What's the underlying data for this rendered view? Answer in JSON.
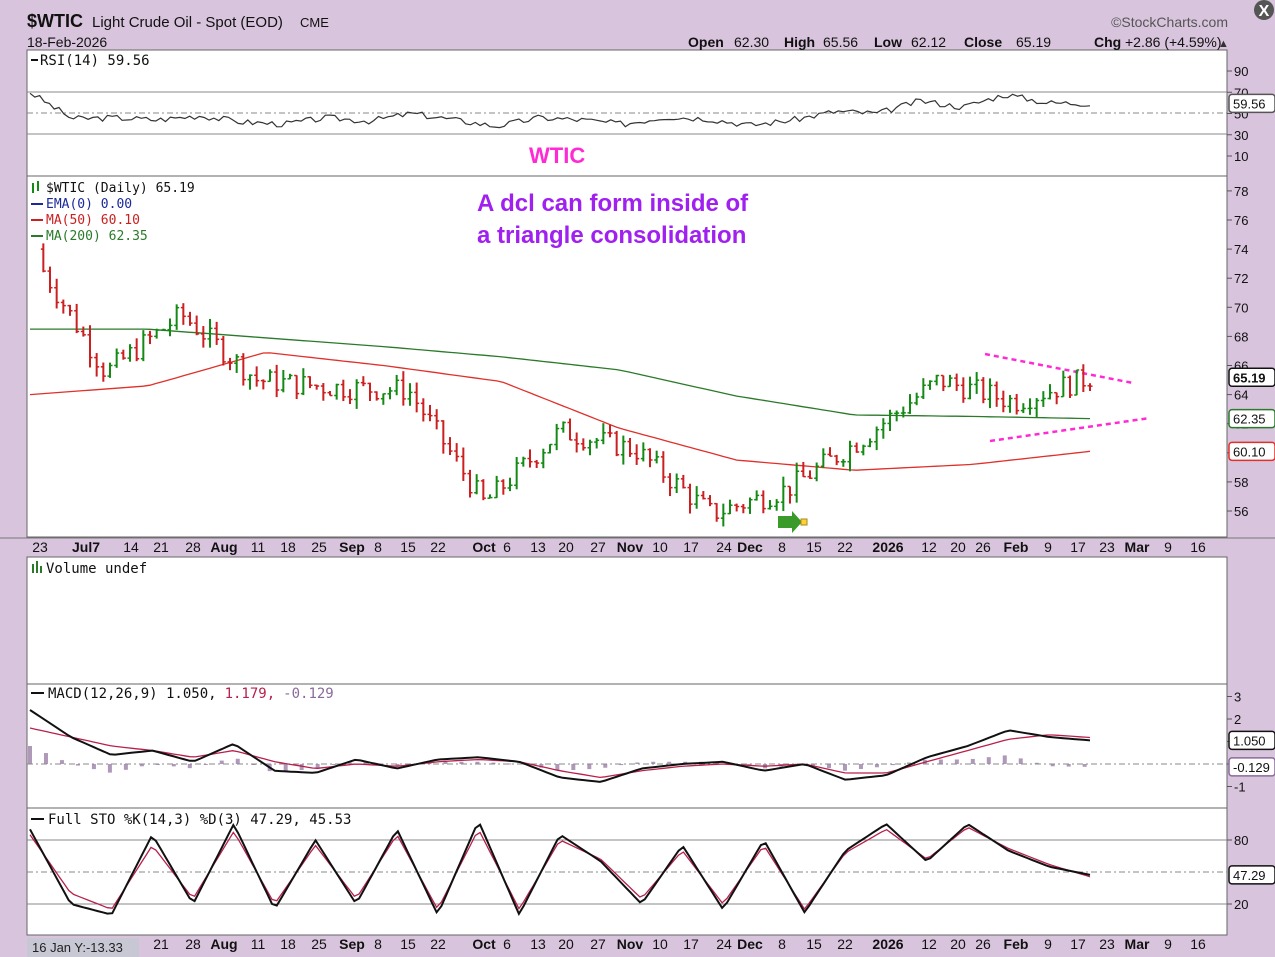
{
  "header": {
    "symbol": "$WTIC",
    "name": "Light Crude Oil - Spot (EOD)",
    "exchange": "CME",
    "date": "18-Feb-2026",
    "watermark": "©StockCharts.com",
    "open_label": "Open",
    "open": "62.30",
    "high_label": "High",
    "high": "65.56",
    "low_label": "Low",
    "low": "62.12",
    "close_label": "Close",
    "close": "65.19",
    "chg_label": "Chg",
    "chg": "+2.86 (+4.59%)",
    "up_arrow": "▲"
  },
  "annotations": {
    "wtic": "WTIC",
    "note_line1": "A dcl can form inside of",
    "note_line2": "a triangle consolidation",
    "wtic_color": "#ff2ad4",
    "note_color": "#a020f0"
  },
  "corner_label": "16 Jan Y:-13.33",
  "x_axis_labels": [
    "23",
    "Jul7",
    "14",
    "21",
    "28",
    "Aug",
    "11",
    "18",
    "25",
    "Sep",
    "8",
    "15",
    "22",
    "Oct",
    "6",
    "13",
    "20",
    "27",
    "Nov",
    "10",
    "17",
    "24",
    "Dec",
    "8",
    "15",
    "22",
    "2026",
    "12",
    "20",
    "26",
    "Feb",
    "9",
    "17",
    "23",
    "Mar",
    "9",
    "16"
  ],
  "x_axis_labels_bottom": [
    "21",
    "28",
    "Aug",
    "11",
    "18",
    "25",
    "Sep",
    "8",
    "15",
    "22",
    "Oct",
    "6",
    "13",
    "20",
    "27",
    "Nov",
    "10",
    "17",
    "24",
    "Dec",
    "8",
    "15",
    "22",
    "2026",
    "12",
    "20",
    "26",
    "Feb",
    "9",
    "17",
    "23",
    "Mar",
    "9",
    "16"
  ],
  "rsi": {
    "legend": "RSI(14) 59.56",
    "value_tag": "59.56",
    "ticks": [
      "90",
      "70",
      "50",
      "30",
      "10"
    ]
  },
  "price": {
    "legend": "$WTIC (Daily) 65.19",
    "ema_legend": "EMA(0) 0.00",
    "ma50_legend": "MA(50) 60.10",
    "ma200_legend": "MA(200) 62.35",
    "close_tag": "65.19",
    "ma200_tag": "62.35",
    "ma50_tag": "60.10",
    "ticks": [
      "78",
      "76",
      "74",
      "72",
      "70",
      "68",
      "66",
      "64",
      "62",
      "60",
      "58",
      "56"
    ]
  },
  "volume": {
    "legend": "Volume undef"
  },
  "macd": {
    "legend_a": "MACD(12,26,9) 1.050,",
    "legend_b": "1.179,",
    "legend_c": "-0.129",
    "tag_macd": "1.050",
    "tag_hist": "-0.129",
    "ticks": [
      "3",
      "2",
      "1",
      "0",
      "-1"
    ]
  },
  "sto": {
    "legend": "Full STO %K(14,3) %D(3) 47.29, 45.53",
    "tag": "47.29",
    "ticks": [
      "80",
      "20"
    ]
  },
  "colors": {
    "up_bar": "#138a13",
    "down_bar": "#cc1f1f",
    "ma50": "#e0302a",
    "ma200": "#2a7a2a",
    "pink_line": "#ff2ad4",
    "macd_signal": "#b8204c",
    "hist": "#9a7fa8"
  },
  "chart_data": [
    {
      "type": "line",
      "panel": "price",
      "xlabel": "",
      "ylabel": "",
      "ylim": [
        55,
        79
      ],
      "note": "",
      "series": [
        {
          "name": "MA(200) 62.35",
          "x": [
            "23",
            "Jul7",
            "Aug",
            "Sep",
            "Oct",
            "Nov",
            "Dec",
            "2026",
            "Feb",
            "17"
          ],
          "values": [
            68.5,
            68.5,
            67.9,
            67.3,
            66.6,
            65.7,
            63.9,
            62.6,
            62.5,
            62.35
          ]
        },
        {
          "name": "MA(50) 60.10",
          "x": [
            "23",
            "Jul7",
            "Aug",
            "Sep",
            "Oct",
            "Nov",
            "Dec",
            "2026",
            "Feb",
            "17"
          ],
          "values": [
            64.0,
            64.6,
            66.9,
            66.0,
            64.9,
            61.7,
            59.5,
            58.8,
            59.2,
            60.1
          ]
        },
        {
          "name": "$WTIC",
          "x": [
            "23",
            "Jul7",
            "28",
            "Aug",
            "Sep",
            "Oct",
            "20",
            "Nov",
            "Dec",
            "15",
            "2026",
            "12",
            "Feb",
            "9",
            "17"
          ],
          "values": [
            74.0,
            65.5,
            69.5,
            65.0,
            64.5,
            64.3,
            56.5,
            61.5,
            60.2,
            55.8,
            57.5,
            61.0,
            65.0,
            63.5,
            65.19
          ]
        }
      ]
    },
    {
      "type": "line",
      "panel": "rsi",
      "ylim": [
        0,
        100
      ],
      "series": [
        {
          "name": "RSI(14)",
          "values": [
            70,
            45,
            46,
            44,
            48,
            42,
            40,
            46,
            43,
            50,
            44,
            38,
            46,
            44,
            40,
            47,
            45,
            39,
            44,
            52,
            50,
            62,
            56,
            68,
            60,
            59.56
          ]
        }
      ]
    },
    {
      "type": "line",
      "panel": "macd",
      "ylim": [
        -1.5,
        3.5
      ],
      "series": [
        {
          "name": "MACD",
          "values": [
            2.4,
            1.2,
            0.4,
            0.6,
            0.1,
            0.9,
            -0.3,
            -0.4,
            0.2,
            -0.2,
            0.2,
            0.3,
            0.1,
            -0.6,
            -0.8,
            -0.2,
            0.0,
            0.1,
            -0.3,
            0.0,
            -0.7,
            -0.5,
            0.3,
            0.8,
            1.5,
            1.2,
            1.05
          ]
        },
        {
          "name": "Signal",
          "values": [
            1.6,
            1.2,
            0.8,
            0.6,
            0.3,
            0.6,
            0.1,
            -0.2,
            0.0,
            -0.1,
            0.1,
            0.2,
            0.1,
            -0.3,
            -0.6,
            -0.3,
            -0.1,
            0.0,
            -0.1,
            0.0,
            -0.4,
            -0.4,
            0.1,
            0.6,
            1.1,
            1.3,
            1.179
          ]
        }
      ]
    },
    {
      "type": "line",
      "panel": "sto",
      "ylim": [
        0,
        100
      ],
      "series": [
        {
          "name": "%K",
          "values": [
            90,
            20,
            10,
            85,
            20,
            95,
            15,
            80,
            20,
            90,
            10,
            98,
            10,
            85,
            60,
            20,
            75,
            15,
            80,
            12,
            70,
            95,
            60,
            95,
            70,
            55,
            47.29
          ]
        },
        {
          "name": "%D",
          "values": [
            85,
            30,
            15,
            75,
            25,
            88,
            20,
            75,
            25,
            85,
            15,
            90,
            15,
            80,
            62,
            25,
            70,
            20,
            75,
            15,
            68,
            90,
            62,
            92,
            72,
            57,
            45.53
          ]
        }
      ]
    }
  ]
}
